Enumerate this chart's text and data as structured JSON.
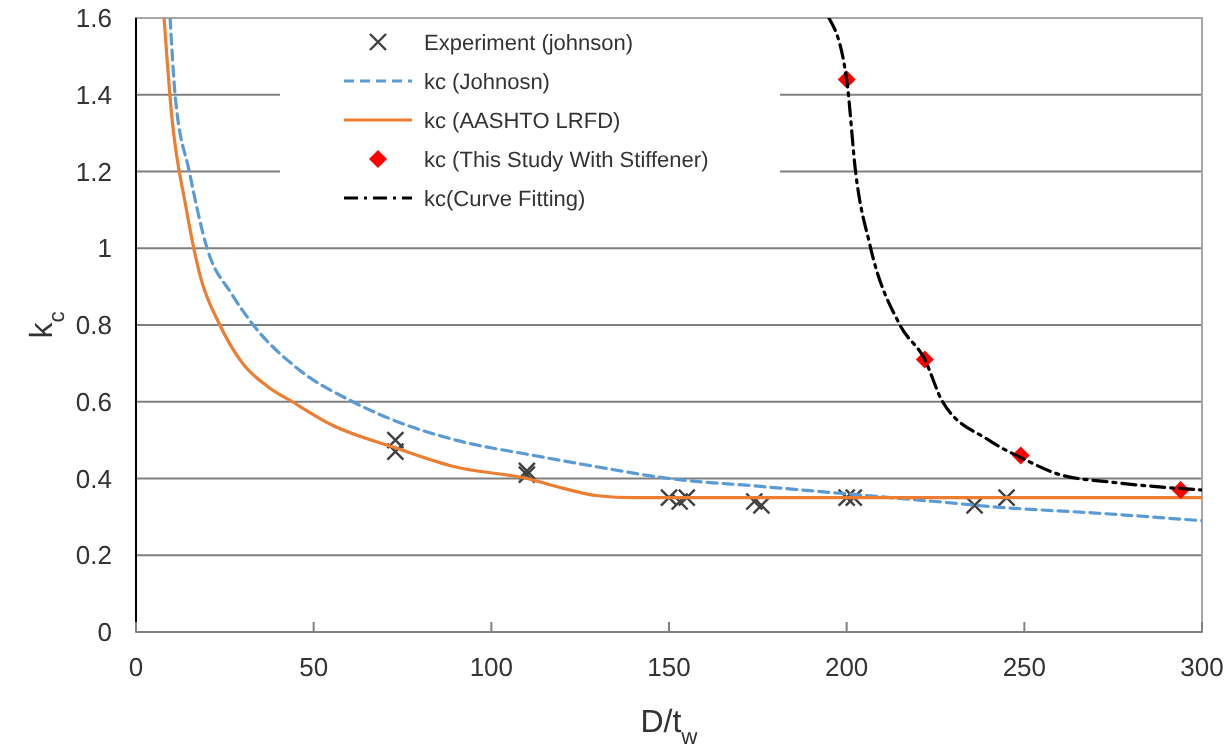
{
  "chart_data": {
    "type": "scatter",
    "xlabel": "D/t$_{w}$",
    "ylabel": "k$_{c}$",
    "xlim": [
      0,
      300
    ],
    "xticks": [
      0,
      50,
      100,
      150,
      200,
      250,
      300
    ],
    "ylim": [
      0,
      1.6
    ],
    "yticks": [
      0,
      0.2,
      0.4,
      0.6,
      0.8,
      1,
      1.2,
      1.4,
      1.6
    ],
    "grid": "y",
    "legend": "top",
    "series": [
      {
        "name": "Experiment (johnson)",
        "marker": "cross",
        "color": "#404040",
        "x": [
          73,
          73,
          110,
          110,
          150,
          153,
          155,
          174,
          176,
          200,
          202,
          236,
          245
        ],
        "values": [
          0.5,
          0.47,
          0.42,
          0.41,
          0.35,
          0.34,
          0.35,
          0.34,
          0.33,
          0.35,
          0.35,
          0.33,
          0.35
        ]
      },
      {
        "name": "kc (Johnosn)",
        "type": "line",
        "line_style": "dashed",
        "marker": "none",
        "color": "#5b9bd5",
        "x": [
          9.6,
          11,
          15,
          20,
          27,
          33,
          45,
          61,
          73,
          90,
          112,
          130,
          150,
          175,
          200,
          225,
          243,
          270,
          300
        ],
        "values": [
          1.6,
          1.4,
          1.2,
          1.0,
          0.88,
          0.8,
          0.69,
          0.6,
          0.55,
          0.5,
          0.46,
          0.43,
          0.4,
          0.38,
          0.36,
          0.34,
          0.325,
          0.31,
          0.29
        ]
      },
      {
        "name": "kc (AASHTO LRFD)",
        "type": "line",
        "line_style": "solid",
        "marker": "none",
        "color": "#ed7d31",
        "x": [
          7.9,
          10,
          14,
          18,
          23.6,
          30,
          37,
          44,
          55,
          73,
          90,
          110,
          120,
          130,
          140,
          200,
          300
        ],
        "values": [
          1.6,
          1.35,
          1.11,
          0.93,
          0.8,
          0.7,
          0.64,
          0.6,
          0.54,
          0.48,
          0.43,
          0.4,
          0.375,
          0.355,
          0.35,
          0.35,
          0.35
        ]
      },
      {
        "name": "kc (This Study With Stiffener)",
        "marker": "diamond",
        "color": "#ff0000",
        "x": [
          200,
          222,
          249,
          294
        ],
        "values": [
          1.44,
          0.71,
          0.46,
          0.37
        ]
      },
      {
        "name": "kc(Curve Fitting)",
        "type": "line",
        "line_style": "dotted",
        "marker": "none",
        "color": "#000000",
        "x": [
          195,
          200,
          202.5,
          206.5,
          215,
          222,
          227,
          240,
          250,
          260,
          275,
          300
        ],
        "values": [
          1.6,
          1.44,
          1.2,
          1.01,
          0.8,
          0.71,
          0.6,
          0.5,
          0.45,
          0.41,
          0.39,
          0.37
        ]
      }
    ]
  }
}
